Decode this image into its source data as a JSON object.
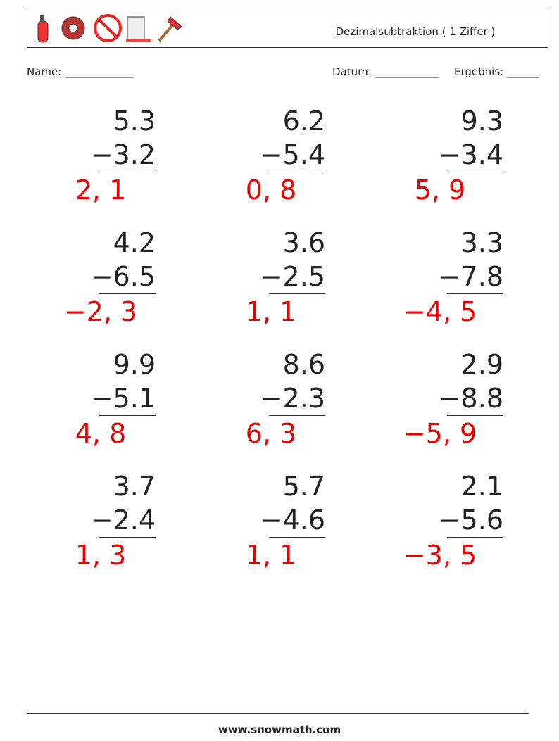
{
  "header": {
    "title": "Dezimalsubtraktion ( 1 Ziffer )"
  },
  "fields": {
    "name": "Name: _____________",
    "date": "Datum: ____________",
    "result": "Ergebnis: ______"
  },
  "problems": [
    [
      {
        "top": "5.3",
        "bottom": "−3.2",
        "answer": "2, 1"
      },
      {
        "top": "6.2",
        "bottom": "−5.4",
        "answer": "0, 8"
      },
      {
        "top": "9.3",
        "bottom": "−3.4",
        "answer": "5, 9"
      }
    ],
    [
      {
        "top": "4.2",
        "bottom": "−6.5",
        "answer": "−2, 3"
      },
      {
        "top": "3.6",
        "bottom": "−2.5",
        "answer": "1, 1"
      },
      {
        "top": "3.3",
        "bottom": "−7.8",
        "answer": "−4, 5"
      }
    ],
    [
      {
        "top": "9.9",
        "bottom": "−5.1",
        "answer": "4, 8"
      },
      {
        "top": "8.6",
        "bottom": "−2.3",
        "answer": "6, 3"
      },
      {
        "top": "2.9",
        "bottom": "−8.8",
        "answer": "−5, 9"
      }
    ],
    [
      {
        "top": "3.7",
        "bottom": "−2.4",
        "answer": "1, 3"
      },
      {
        "top": "5.7",
        "bottom": "−4.6",
        "answer": "1, 1"
      },
      {
        "top": "2.1",
        "bottom": "−5.6",
        "answer": "−3, 5"
      }
    ]
  ],
  "footer": {
    "site": "www.snowmath.com"
  }
}
